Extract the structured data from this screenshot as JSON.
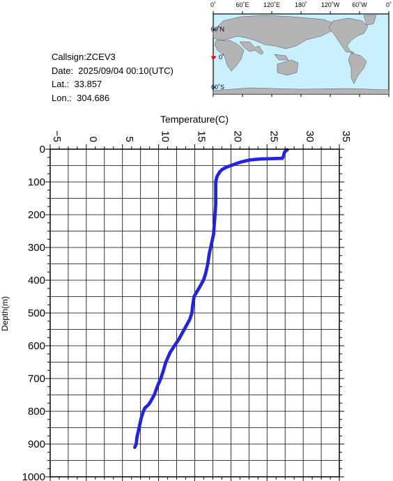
{
  "info": {
    "callsign": "Callsign:ZCEV3",
    "date": "Date:  2025/09/04 00:10(UTC)",
    "lat": "Lat.:  33.857",
    "lon": "Lon.:  304.686"
  },
  "map": {
    "lon_labels": [
      "0˚",
      "60˚E",
      "120˚E",
      "180˚",
      "120˚W",
      "60˚W",
      "0˚"
    ],
    "lat_labels": [
      "60˚N",
      "0˚",
      "60˚S"
    ],
    "ocean_color": "#c8f0ff",
    "land_color": "#b4b4b4",
    "marker_color": "#ff0000",
    "marker_icon": "star-icon"
  },
  "chart_data": {
    "type": "line",
    "xlabel": "Temperature(C)",
    "ylabel": "Depth(m)",
    "xlim": [
      -5,
      35
    ],
    "ylim": [
      1000,
      0
    ],
    "x_ticks": [
      -5,
      0,
      5,
      10,
      15,
      20,
      25,
      30,
      35
    ],
    "y_ticks": [
      0,
      100,
      200,
      300,
      400,
      500,
      600,
      700,
      800,
      900,
      1000
    ],
    "grid": true,
    "series_color": "#2323e6",
    "series": [
      {
        "name": "",
        "depth": [
          2,
          5,
          10,
          20,
          28,
          30,
          33,
          38,
          42,
          46,
          50,
          54,
          58,
          62,
          68,
          75,
          82,
          90,
          100,
          110,
          120,
          130,
          150,
          170,
          200,
          230,
          260,
          280,
          300,
          320,
          350,
          380,
          400,
          420,
          450,
          480,
          500,
          520,
          540,
          560,
          580,
          600,
          620,
          650,
          680,
          700,
          720,
          750,
          770,
          780,
          790,
          800,
          820,
          850,
          880,
          900,
          910
        ],
        "temperature": [
          27.8,
          27.6,
          27.4,
          27.3,
          27.1,
          24.0,
          22.6,
          21.6,
          21.0,
          20.5,
          20.0,
          19.5,
          19.1,
          18.8,
          18.5,
          18.3,
          18.1,
          18.0,
          17.9,
          17.9,
          17.9,
          17.9,
          17.9,
          17.9,
          17.8,
          17.7,
          17.6,
          17.4,
          17.2,
          17.0,
          16.8,
          16.5,
          16.2,
          15.7,
          14.9,
          14.7,
          14.6,
          14.3,
          13.8,
          13.3,
          12.8,
          12.2,
          11.6,
          11.0,
          10.6,
          10.3,
          9.9,
          9.4,
          8.9,
          8.6,
          8.1,
          7.9,
          7.6,
          7.3,
          7.0,
          6.9,
          6.7
        ]
      }
    ]
  }
}
